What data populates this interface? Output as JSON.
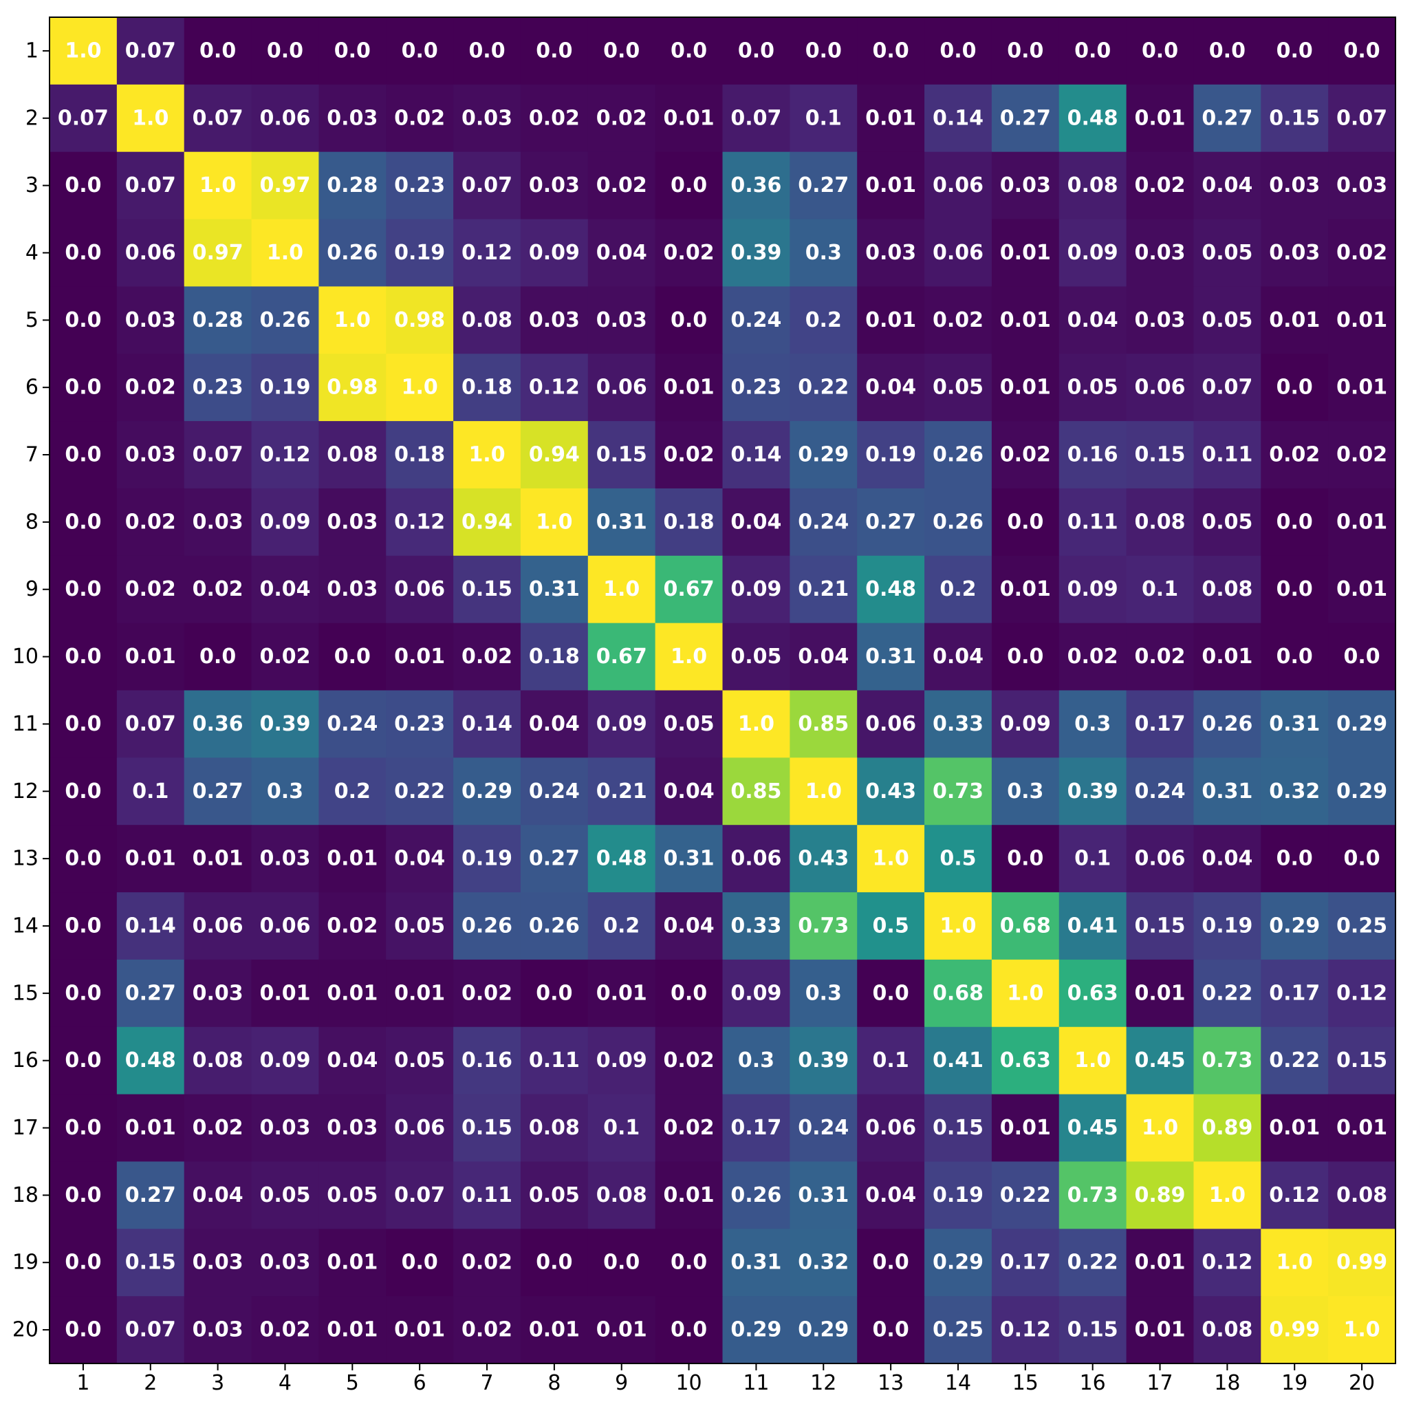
{
  "chart_data": {
    "type": "heatmap",
    "title": "",
    "xlabel": "",
    "ylabel": "",
    "colormap": "viridis",
    "vmin": 0,
    "vmax": 1,
    "grid": false,
    "legend": "none",
    "x_categories": [
      "1",
      "2",
      "3",
      "4",
      "5",
      "6",
      "7",
      "8",
      "9",
      "10",
      "11",
      "12",
      "13",
      "14",
      "15",
      "16",
      "17",
      "18",
      "19",
      "20"
    ],
    "y_categories": [
      "1",
      "2",
      "3",
      "4",
      "5",
      "6",
      "7",
      "8",
      "9",
      "10",
      "11",
      "12",
      "13",
      "14",
      "15",
      "16",
      "17",
      "18",
      "19",
      "20"
    ],
    "values": [
      [
        1.0,
        0.07,
        0.0,
        0.0,
        0.0,
        0.0,
        0.0,
        0.0,
        0.0,
        0.0,
        0.0,
        0.0,
        0.0,
        0.0,
        0.0,
        0.0,
        0.0,
        0.0,
        0.0,
        0.0
      ],
      [
        0.07,
        1.0,
        0.07,
        0.06,
        0.03,
        0.02,
        0.03,
        0.02,
        0.02,
        0.01,
        0.07,
        0.1,
        0.01,
        0.14,
        0.27,
        0.48,
        0.01,
        0.27,
        0.15,
        0.07
      ],
      [
        0.0,
        0.07,
        1.0,
        0.97,
        0.28,
        0.23,
        0.07,
        0.03,
        0.02,
        0.0,
        0.36,
        0.27,
        0.01,
        0.06,
        0.03,
        0.08,
        0.02,
        0.04,
        0.03,
        0.03
      ],
      [
        0.0,
        0.06,
        0.97,
        1.0,
        0.26,
        0.19,
        0.12,
        0.09,
        0.04,
        0.02,
        0.39,
        0.3,
        0.03,
        0.06,
        0.01,
        0.09,
        0.03,
        0.05,
        0.03,
        0.02
      ],
      [
        0.0,
        0.03,
        0.28,
        0.26,
        1.0,
        0.98,
        0.08,
        0.03,
        0.03,
        0.0,
        0.24,
        0.2,
        0.01,
        0.02,
        0.01,
        0.04,
        0.03,
        0.05,
        0.01,
        0.01
      ],
      [
        0.0,
        0.02,
        0.23,
        0.19,
        0.98,
        1.0,
        0.18,
        0.12,
        0.06,
        0.01,
        0.23,
        0.22,
        0.04,
        0.05,
        0.01,
        0.05,
        0.06,
        0.07,
        0.0,
        0.01
      ],
      [
        0.0,
        0.03,
        0.07,
        0.12,
        0.08,
        0.18,
        1.0,
        0.94,
        0.15,
        0.02,
        0.14,
        0.29,
        0.19,
        0.26,
        0.02,
        0.16,
        0.15,
        0.11,
        0.02,
        0.02
      ],
      [
        0.0,
        0.02,
        0.03,
        0.09,
        0.03,
        0.12,
        0.94,
        1.0,
        0.31,
        0.18,
        0.04,
        0.24,
        0.27,
        0.26,
        0.0,
        0.11,
        0.08,
        0.05,
        0.0,
        0.01
      ],
      [
        0.0,
        0.02,
        0.02,
        0.04,
        0.03,
        0.06,
        0.15,
        0.31,
        1.0,
        0.67,
        0.09,
        0.21,
        0.48,
        0.2,
        0.01,
        0.09,
        0.1,
        0.08,
        0.0,
        0.01
      ],
      [
        0.0,
        0.01,
        0.0,
        0.02,
        0.0,
        0.01,
        0.02,
        0.18,
        0.67,
        1.0,
        0.05,
        0.04,
        0.31,
        0.04,
        0.0,
        0.02,
        0.02,
        0.01,
        0.0,
        0.0
      ],
      [
        0.0,
        0.07,
        0.36,
        0.39,
        0.24,
        0.23,
        0.14,
        0.04,
        0.09,
        0.05,
        1.0,
        0.85,
        0.06,
        0.33,
        0.09,
        0.3,
        0.17,
        0.26,
        0.31,
        0.29
      ],
      [
        0.0,
        0.1,
        0.27,
        0.3,
        0.2,
        0.22,
        0.29,
        0.24,
        0.21,
        0.04,
        0.85,
        1.0,
        0.43,
        0.73,
        0.3,
        0.39,
        0.24,
        0.31,
        0.32,
        0.29
      ],
      [
        0.0,
        0.01,
        0.01,
        0.03,
        0.01,
        0.04,
        0.19,
        0.27,
        0.48,
        0.31,
        0.06,
        0.43,
        1.0,
        0.5,
        0.0,
        0.1,
        0.06,
        0.04,
        0.0,
        0.0
      ],
      [
        0.0,
        0.14,
        0.06,
        0.06,
        0.02,
        0.05,
        0.26,
        0.26,
        0.2,
        0.04,
        0.33,
        0.73,
        0.5,
        1.0,
        0.68,
        0.41,
        0.15,
        0.19,
        0.29,
        0.25
      ],
      [
        0.0,
        0.27,
        0.03,
        0.01,
        0.01,
        0.01,
        0.02,
        0.0,
        0.01,
        0.0,
        0.09,
        0.3,
        0.0,
        0.68,
        1.0,
        0.63,
        0.01,
        0.22,
        0.17,
        0.12
      ],
      [
        0.0,
        0.48,
        0.08,
        0.09,
        0.04,
        0.05,
        0.16,
        0.11,
        0.09,
        0.02,
        0.3,
        0.39,
        0.1,
        0.41,
        0.63,
        1.0,
        0.45,
        0.73,
        0.22,
        0.15
      ],
      [
        0.0,
        0.01,
        0.02,
        0.03,
        0.03,
        0.06,
        0.15,
        0.08,
        0.1,
        0.02,
        0.17,
        0.24,
        0.06,
        0.15,
        0.01,
        0.45,
        1.0,
        0.89,
        0.01,
        0.01
      ],
      [
        0.0,
        0.27,
        0.04,
        0.05,
        0.05,
        0.07,
        0.11,
        0.05,
        0.08,
        0.01,
        0.26,
        0.31,
        0.04,
        0.19,
        0.22,
        0.73,
        0.89,
        1.0,
        0.12,
        0.08
      ],
      [
        0.0,
        0.15,
        0.03,
        0.03,
        0.01,
        0.0,
        0.02,
        0.0,
        0.0,
        0.0,
        0.31,
        0.32,
        0.0,
        0.29,
        0.17,
        0.22,
        0.01,
        0.12,
        1.0,
        0.99
      ],
      [
        0.0,
        0.07,
        0.03,
        0.02,
        0.01,
        0.01,
        0.02,
        0.01,
        0.01,
        0.0,
        0.29,
        0.29,
        0.0,
        0.25,
        0.12,
        0.15,
        0.01,
        0.08,
        0.99,
        1.0
      ]
    ]
  }
}
